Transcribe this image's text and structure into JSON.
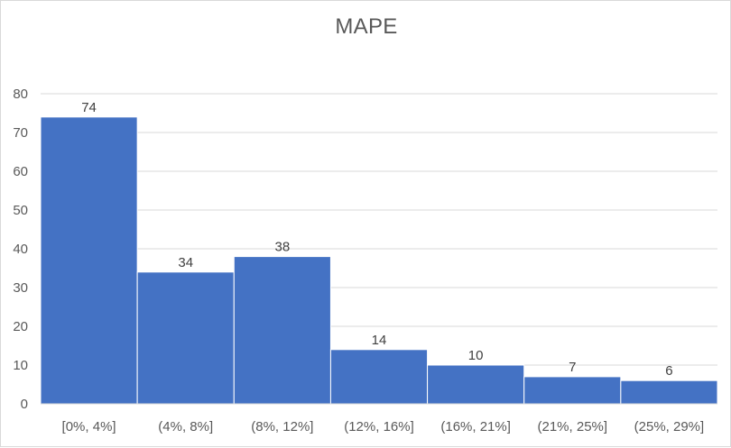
{
  "chart_data": {
    "type": "bar",
    "title": "MAPE",
    "categories": [
      "[0%, 4%]",
      "(4%, 8%]",
      "(8%, 12%]",
      "(12%, 16%]",
      "(16%, 21%]",
      "(21%, 25%]",
      "(25%, 29%]"
    ],
    "values": [
      74,
      34,
      38,
      14,
      10,
      7,
      6
    ],
    "data_labels": [
      "74",
      "34",
      "38",
      "14",
      "10",
      "7",
      "6"
    ],
    "xlabel": "",
    "ylabel": "",
    "ylim": [
      0,
      80
    ],
    "yticks": [
      0,
      10,
      20,
      30,
      40,
      50,
      60,
      70,
      80
    ],
    "grid": true,
    "legend": "none",
    "bar_color": "#4472c4",
    "grid_color": "#d9d9d9"
  }
}
